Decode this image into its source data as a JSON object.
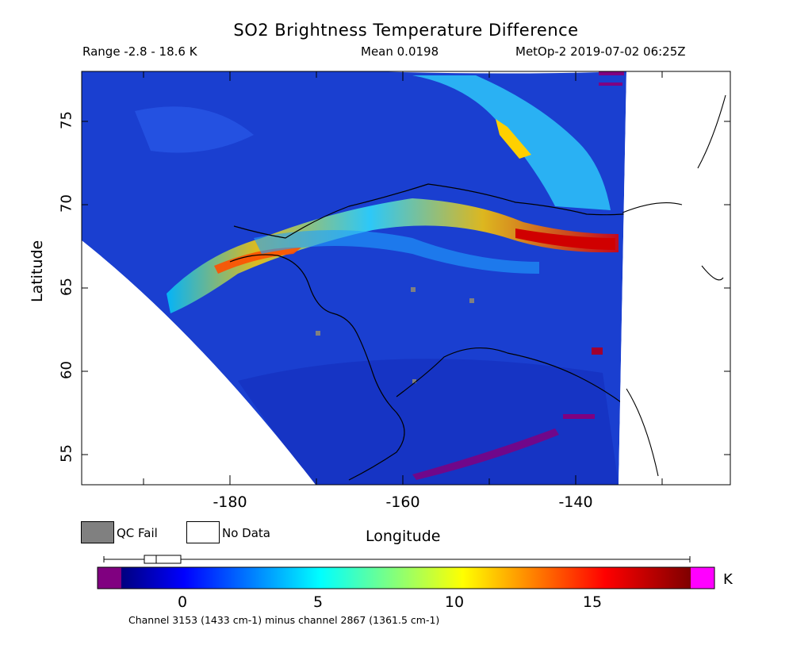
{
  "header": {
    "title": "SO2 Brightness Temperature Difference",
    "range": "Range -2.8 - 18.6 K",
    "mean": "Mean 0.0198",
    "satellite": "MetOp-2 2019-07-02 06:25Z"
  },
  "axes": {
    "ylabel": "Latitude",
    "xlabel": "Longitude",
    "yticks": [
      "75",
      "70",
      "65",
      "60",
      "55"
    ],
    "xticks": [
      "-180",
      "-160",
      "-140"
    ]
  },
  "legend": {
    "qc_fail": "QC Fail",
    "no_data": "No Data",
    "qc_color": "#808080",
    "no_data_color": "#ffffff"
  },
  "colorbar": {
    "ticks": [
      "0",
      "5",
      "10",
      "15"
    ],
    "unit": "K",
    "under_color": "#800080",
    "over_color": "#ff00ff",
    "range_min": -2.8,
    "range_max": 18.6
  },
  "footer": {
    "channel": "Channel 3153 (1433 cm-1) minus channel 2867 (1361.5 cm-1)"
  },
  "map": {
    "lon_range": [
      -197,
      -125
    ],
    "lat_range": [
      53.5,
      78
    ],
    "background_value_color": "#1a3fd0"
  }
}
